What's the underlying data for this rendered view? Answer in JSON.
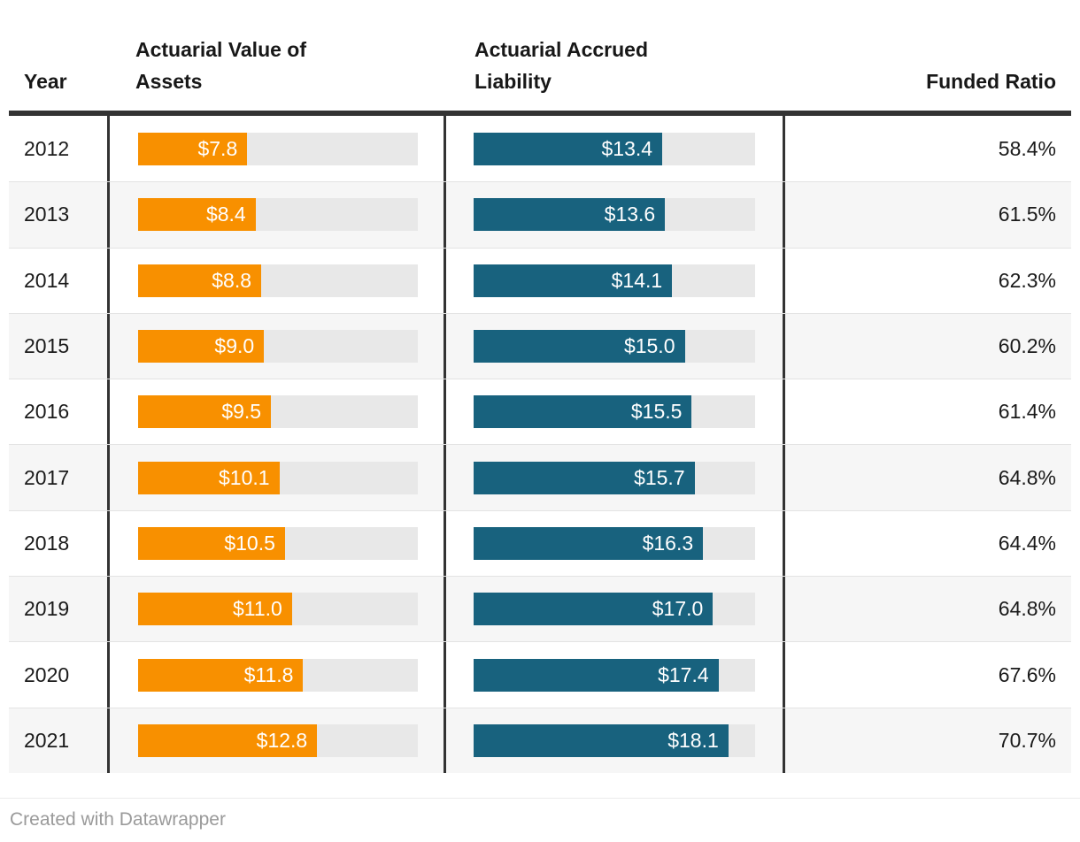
{
  "table": {
    "headers": {
      "year": "Year",
      "assets": "Actuarial Value of Assets",
      "liability": "Actuarial Accrued Liability",
      "ratio": "Funded Ratio"
    },
    "scale_max": 20,
    "rows": [
      {
        "year": "2012",
        "assets": 7.8,
        "assets_label": "$7.8",
        "liability": 13.4,
        "liability_label": "$13.4",
        "ratio_label": "58.4%"
      },
      {
        "year": "2013",
        "assets": 8.4,
        "assets_label": "$8.4",
        "liability": 13.6,
        "liability_label": "$13.6",
        "ratio_label": "61.5%"
      },
      {
        "year": "2014",
        "assets": 8.8,
        "assets_label": "$8.8",
        "liability": 14.1,
        "liability_label": "$14.1",
        "ratio_label": "62.3%"
      },
      {
        "year": "2015",
        "assets": 9.0,
        "assets_label": "$9.0",
        "liability": 15.0,
        "liability_label": "$15.0",
        "ratio_label": "60.2%"
      },
      {
        "year": "2016",
        "assets": 9.5,
        "assets_label": "$9.5",
        "liability": 15.5,
        "liability_label": "$15.5",
        "ratio_label": "61.4%"
      },
      {
        "year": "2017",
        "assets": 10.1,
        "assets_label": "$10.1",
        "liability": 15.7,
        "liability_label": "$15.7",
        "ratio_label": "64.8%"
      },
      {
        "year": "2018",
        "assets": 10.5,
        "assets_label": "$10.5",
        "liability": 16.3,
        "liability_label": "$16.3",
        "ratio_label": "64.4%"
      },
      {
        "year": "2019",
        "assets": 11.0,
        "assets_label": "$11.0",
        "liability": 17.0,
        "liability_label": "$17.0",
        "ratio_label": "64.8%"
      },
      {
        "year": "2020",
        "assets": 11.8,
        "assets_label": "$11.8",
        "liability": 17.4,
        "liability_label": "$17.4",
        "ratio_label": "67.6%"
      },
      {
        "year": "2021",
        "assets": 12.8,
        "assets_label": "$12.8",
        "liability": 18.1,
        "liability_label": "$18.1",
        "ratio_label": "70.7%"
      }
    ]
  },
  "chart_data": {
    "type": "table",
    "columns": [
      "Year",
      "Actuarial Value of Assets",
      "Actuarial Accrued Liability",
      "Funded Ratio"
    ],
    "categories": [
      "2012",
      "2013",
      "2014",
      "2015",
      "2016",
      "2017",
      "2018",
      "2019",
      "2020",
      "2021"
    ],
    "series": [
      {
        "name": "Actuarial Value of Assets",
        "values": [
          7.8,
          8.4,
          8.8,
          9.0,
          9.5,
          10.1,
          10.5,
          11.0,
          11.8,
          12.8
        ]
      },
      {
        "name": "Actuarial Accrued Liability",
        "values": [
          13.4,
          13.6,
          14.1,
          15.0,
          15.5,
          15.7,
          16.3,
          17.0,
          17.4,
          18.1
        ]
      },
      {
        "name": "Funded Ratio (%)",
        "values": [
          58.4,
          61.5,
          62.3,
          60.2,
          61.4,
          64.8,
          64.4,
          64.8,
          67.6,
          70.7
        ]
      }
    ],
    "bar_axis_range": [
      0,
      20
    ],
    "grid": false,
    "legend_position": "none"
  },
  "colors": {
    "assets_bar": "#f89000",
    "liability_bar": "#18627e",
    "bar_track": "#e8e8e8",
    "row_stripe": "#f6f6f6",
    "rule": "#333333"
  },
  "footer": {
    "credit": "Created with Datawrapper"
  }
}
